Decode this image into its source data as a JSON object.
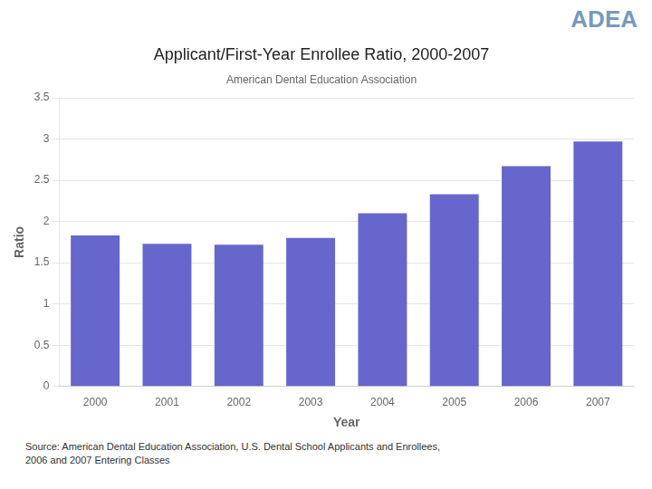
{
  "chart_data": {
    "type": "bar",
    "title": "Applicant/First-Year Enrollee Ratio, 2000-2007",
    "subtitle": "American Dental Education Association",
    "categories": [
      "2000",
      "2001",
      "2002",
      "2003",
      "2004",
      "2005",
      "2006",
      "2007"
    ],
    "values": [
      1.83,
      1.73,
      1.72,
      1.8,
      2.1,
      2.33,
      2.67,
      2.97
    ],
    "color": "#6666CC",
    "xlabel": "Year",
    "ylabel": "Ratio",
    "ylim": [
      0,
      3.5
    ],
    "yticks": [
      0,
      0.5,
      1.0,
      1.5,
      2.0,
      2.5,
      3.0,
      3.5
    ],
    "grid": true,
    "annotations": [
      "ADEA",
      "Source: American Dental Education Association, U.S. Dental School Applicants and Enrollees,\n2006 and 2007 Entering Classes"
    ]
  }
}
